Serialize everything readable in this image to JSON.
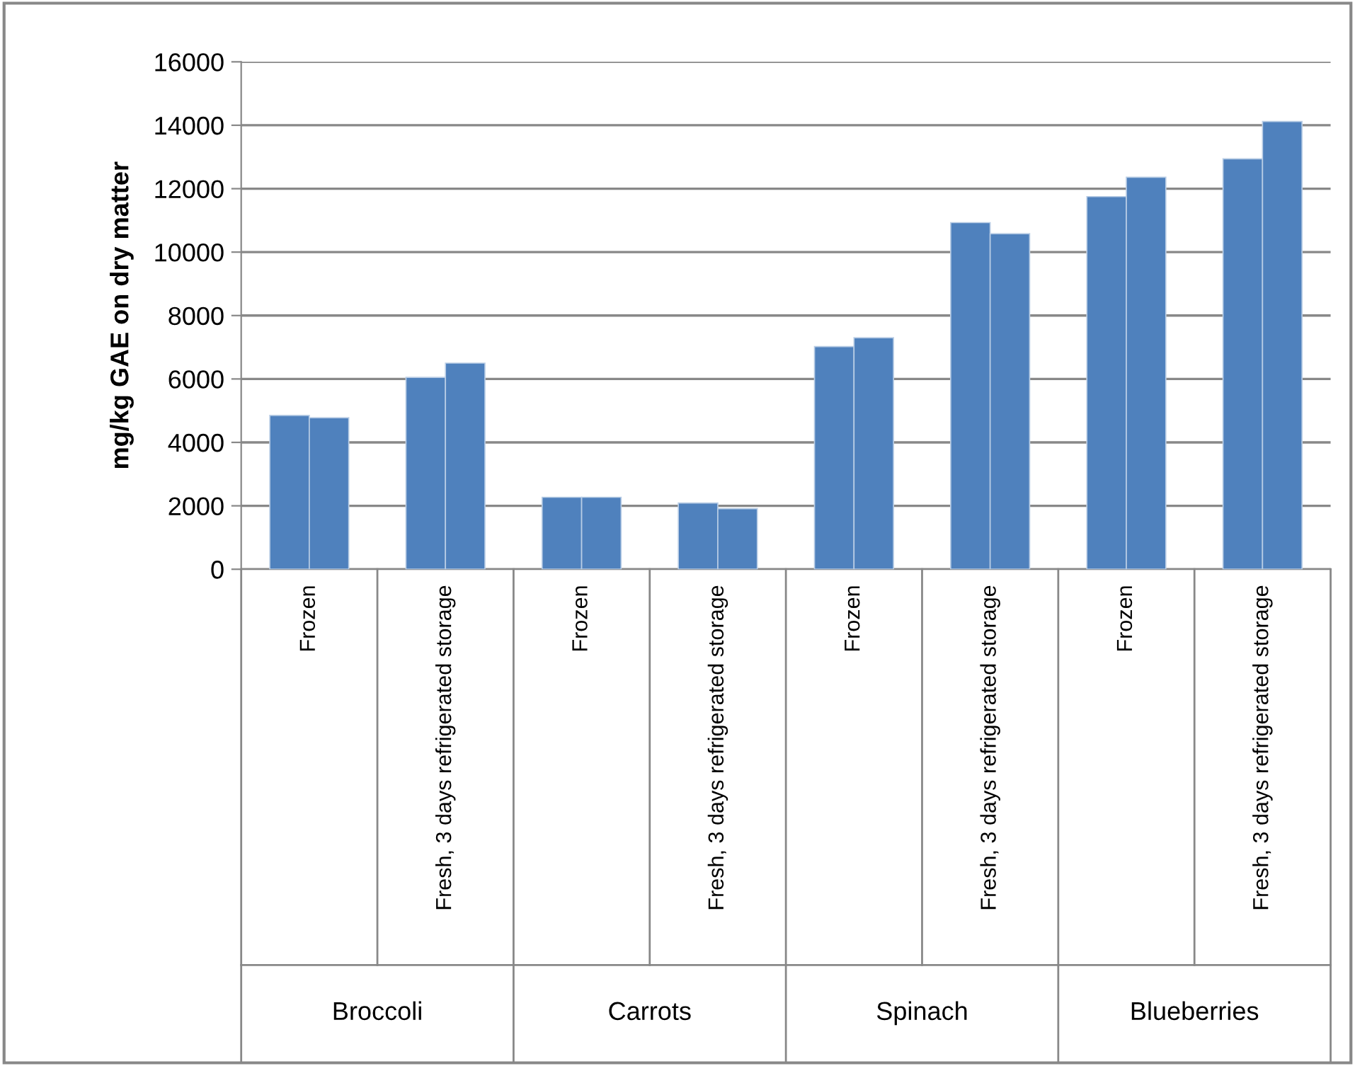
{
  "chart_data": {
    "type": "bar",
    "ylabel": "mg/kg GAE on dry matter",
    "categories": [
      "Frozen",
      "Fresh, 3 days refrigerated storage",
      "Frozen",
      "Fresh, 3 days refrigerated storage",
      "Frozen",
      "Fresh, 3 days refrigerated storage",
      "Frozen",
      "Fresh, 3 days refrigerated storage"
    ],
    "series": [
      {
        "color": "#4f81bd",
        "values": [
          4850,
          6050,
          2270,
          2090,
          7020,
          10930,
          11750,
          12940
        ]
      },
      {
        "color": "#4f81bd",
        "values": [
          4780,
          6500,
          2270,
          1910,
          7300,
          10580,
          12360,
          14120
        ]
      }
    ],
    "annotations": [
      "Broccoli",
      "Carrots",
      "Spinach",
      "Blueberries"
    ],
    "ylim": [
      0,
      16000
    ],
    "yticks": [
      0,
      2000,
      4000,
      6000,
      8000,
      10000,
      12000,
      14000,
      16000
    ],
    "grid": "y",
    "legend": false
  }
}
